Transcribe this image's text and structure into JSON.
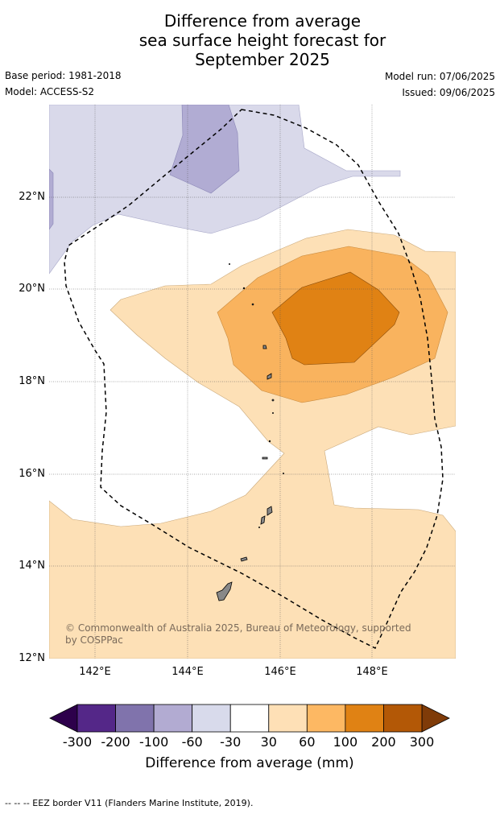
{
  "title_lines": [
    "Difference from average",
    "sea surface height forecast for",
    "September 2025"
  ],
  "meta": {
    "base_period": "Base period: 1981-2018",
    "model": "Model: ACCESS-S2",
    "model_run": "Model run: 07/06/2025",
    "issued": "Issued: 09/06/2025"
  },
  "map": {
    "lat_ticks": [
      "12°N",
      "14°N",
      "16°N",
      "18°N",
      "20°N",
      "22°N"
    ],
    "lon_ticks": [
      "142°E",
      "144°E",
      "146°E",
      "148°E"
    ],
    "lon_range": [
      141,
      149.8
    ],
    "lat_range": [
      12,
      24
    ],
    "copyright": "© Commonwealth of Australia 2025, Bureau of Meteorology, supported by COSPPac",
    "fill_colors": {
      "neg_60_30": "#d9d9ea",
      "neg_100_60": "#b1acd3",
      "pos_30_60": "#fde0b6",
      "pos_60_100": "#f9b35e",
      "pos_100_200": "#e08214",
      "land": "#888888"
    }
  },
  "colorbar": {
    "title": "Difference from average (mm)",
    "labels": [
      "-300",
      "-200",
      "-100",
      "-60",
      "-30",
      "30",
      "60",
      "100",
      "200",
      "300"
    ],
    "colors": [
      "#542788",
      "#8073ac",
      "#b2abd2",
      "#d8daeb",
      "#ffffff",
      "#fee0b6",
      "#fdb863",
      "#e08214",
      "#b35806"
    ],
    "under_color": "#2d004b",
    "over_color": "#7f3b08"
  },
  "footer": "--  --  -- EEZ border V11 (Flanders Marine Institute, 2019)."
}
